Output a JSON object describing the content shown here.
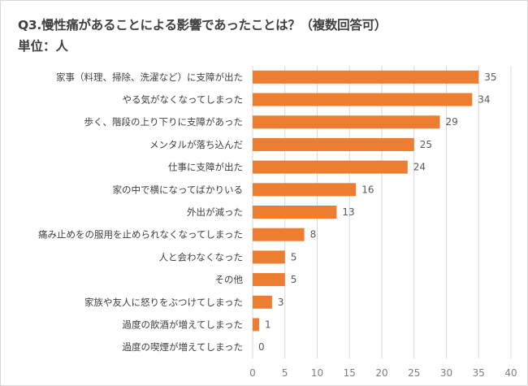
{
  "chart_data": {
    "type": "bar",
    "orientation": "horizontal",
    "title": "Q3.慢性痛があることによる影響であったことは？（複数回答可）",
    "subtitle": "単位：人",
    "categories": [
      "家事（料理、掃除、洗濯など）に支障が出た",
      "やる気がなくなってしまった",
      "歩く、階段の上り下りに支障があった",
      "メンタルが落ち込んだ",
      "仕事に支障が出た",
      "家の中で横になってばかりいる",
      "外出が減った",
      "痛み止めをの服用を止められなくなってしまった",
      "人と会わなくなった",
      "その他",
      "家族や友人に怒りをぶつけてしまった",
      "過度の飲酒が増えてしまった",
      "過度の喫煙が増えてしまった"
    ],
    "values": [
      35,
      34,
      29,
      25,
      24,
      16,
      13,
      8,
      5,
      5,
      3,
      1,
      0
    ],
    "xlim": [
      0,
      40
    ],
    "xticks": [
      0,
      5,
      10,
      15,
      20,
      25,
      30,
      35,
      40
    ],
    "grid": true,
    "data_labels": true,
    "legend": "none",
    "bar_color": "#ED7D31"
  }
}
